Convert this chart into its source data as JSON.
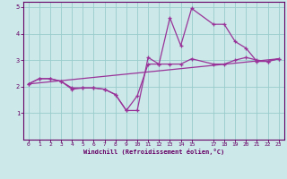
{
  "title": "",
  "xlabel": "Windchill (Refroidissement éolien,°C)",
  "ylabel": "",
  "bg_color": "#cce8e8",
  "line_color": "#993399",
  "grid_color": "#99cccc",
  "axis_color": "#660066",
  "spine_color": "#660066",
  "xlim": [
    -0.5,
    23.5
  ],
  "ylim": [
    0,
    5.2
  ],
  "xticks": [
    0,
    1,
    2,
    3,
    4,
    5,
    6,
    7,
    8,
    9,
    10,
    11,
    12,
    13,
    14,
    15,
    17,
    18,
    19,
    20,
    21,
    22,
    23
  ],
  "yticks": [
    1,
    2,
    3,
    4,
    5
  ],
  "line1_x": [
    0,
    1,
    2,
    3,
    4,
    5,
    6,
    7,
    8,
    9,
    10,
    11,
    12,
    13,
    14,
    15,
    17,
    18,
    19,
    20,
    21,
    22,
    23
  ],
  "line1_y": [
    2.1,
    2.3,
    2.3,
    2.2,
    1.9,
    1.95,
    1.95,
    1.9,
    1.7,
    1.1,
    1.1,
    3.1,
    2.85,
    4.6,
    3.55,
    4.95,
    4.35,
    4.35,
    3.7,
    3.45,
    2.95,
    2.95,
    3.05
  ],
  "line2_x": [
    0,
    1,
    2,
    3,
    4,
    5,
    6,
    7,
    8,
    9,
    10,
    11,
    12,
    13,
    14,
    15,
    17,
    18,
    19,
    20,
    21,
    22,
    23
  ],
  "line2_y": [
    2.1,
    2.3,
    2.3,
    2.2,
    1.95,
    1.95,
    1.95,
    1.9,
    1.7,
    1.1,
    1.65,
    2.85,
    2.85,
    2.85,
    2.85,
    3.05,
    2.85,
    2.85,
    3.0,
    3.1,
    3.0,
    2.95,
    3.05
  ],
  "line3_x": [
    0,
    23
  ],
  "line3_y": [
    2.1,
    3.05
  ],
  "figsize": [
    3.2,
    2.0
  ],
  "dpi": 100
}
